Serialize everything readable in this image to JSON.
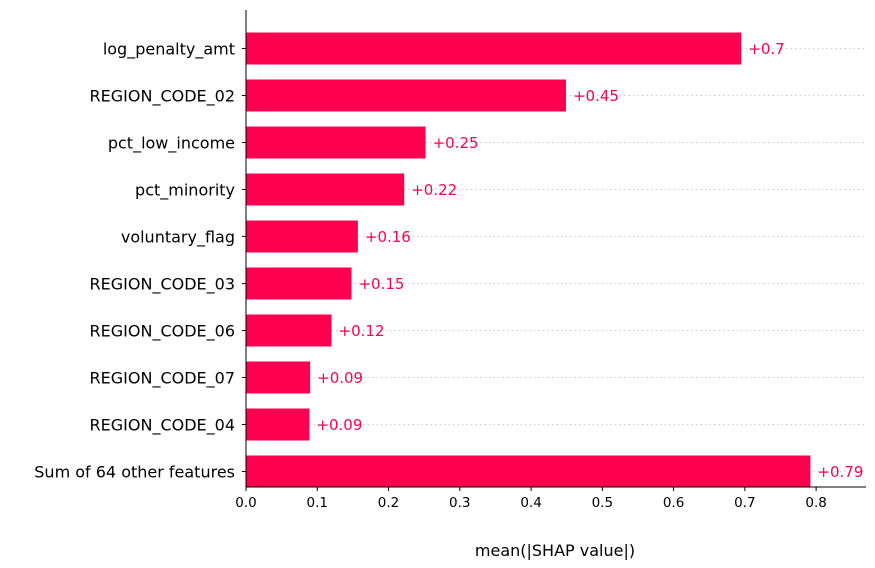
{
  "chart_data": {
    "type": "bar",
    "orientation": "horizontal",
    "categories": [
      "log_penalty_amt",
      "REGION_CODE_02",
      "pct_low_income",
      "pct_minority",
      "voluntary_flag",
      "REGION_CODE_03",
      "REGION_CODE_06",
      "REGION_CODE_07",
      "REGION_CODE_04",
      "Sum of 64 other features"
    ],
    "values": [
      0.695,
      0.449,
      0.252,
      0.222,
      0.157,
      0.148,
      0.12,
      0.09,
      0.089,
      0.792
    ],
    "value_labels": [
      "+0.7",
      "+0.45",
      "+0.25",
      "+0.22",
      "+0.16",
      "+0.15",
      "+0.12",
      "+0.09",
      "+0.09",
      "+0.79"
    ],
    "xlabel": "mean(|SHAP value|)",
    "ylabel": "",
    "xlim": [
      0,
      0.87
    ],
    "xticks": [
      0,
      0.1,
      0.2,
      0.3,
      0.4,
      0.5,
      0.6,
      0.7,
      0.8
    ],
    "xtick_labels": [
      "0.0",
      "0.1",
      "0.2",
      "0.3",
      "0.4",
      "0.5",
      "0.6",
      "0.7",
      "0.8"
    ],
    "row_grid": "dotted",
    "bar_color": "#ff0051",
    "label_color": "#ff0051",
    "axis_color": "#000000",
    "grid_color": "#cccccc"
  }
}
